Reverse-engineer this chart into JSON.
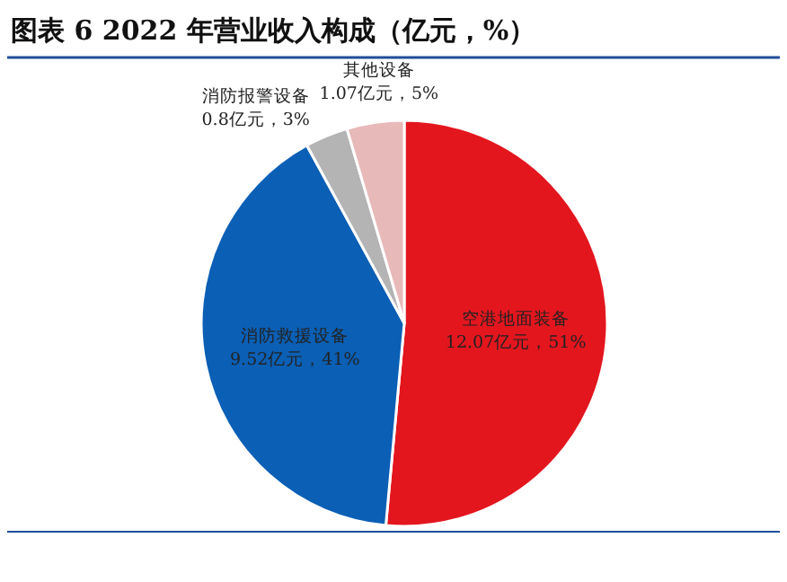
{
  "chart_data": {
    "type": "pie",
    "title": "图表 6  2022 年营业收入构成（亿元，%）",
    "categories": [
      "空港地面装备",
      "消防救援设备",
      "消防报警设备",
      "其他设备"
    ],
    "values": [
      12.07,
      9.52,
      0.8,
      1.07
    ],
    "value_labels": [
      "12.07亿元，51%",
      "9.52亿元，41%",
      "0.8亿元，3%",
      "1.07亿元，5%"
    ],
    "colors": [
      "#e3161e",
      "#0b5fb5",
      "#b4b4b4",
      "#e8b9b9"
    ],
    "legend": false
  }
}
